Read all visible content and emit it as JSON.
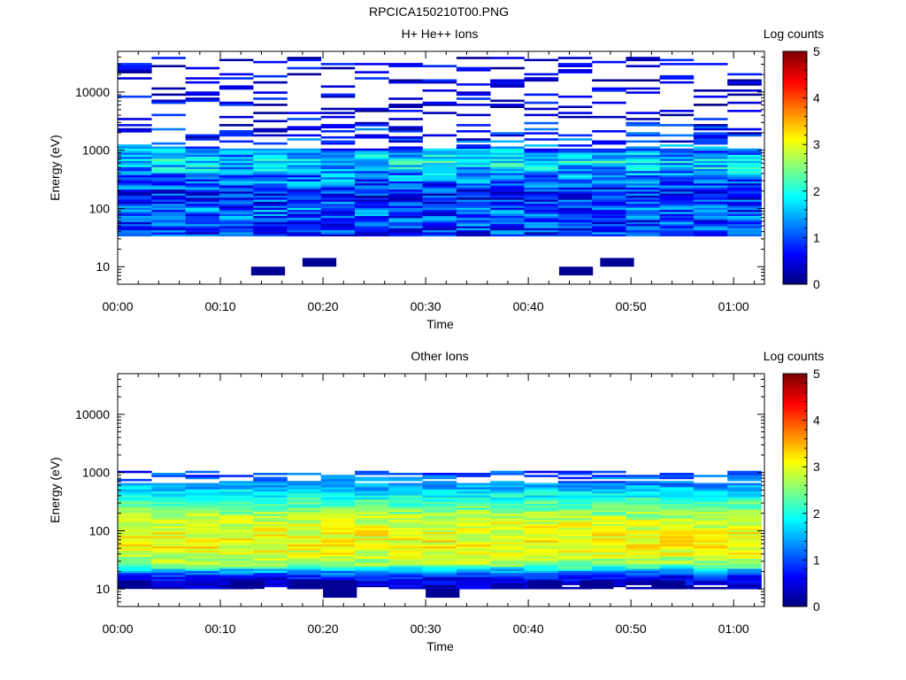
{
  "figure_title": "RPCICA150210T00.PNG",
  "chart_data": [
    {
      "type": "heatmap",
      "title": "H+ He++ Ions",
      "xlabel": "Time",
      "ylabel": "Energy (eV)",
      "y_scale": "log",
      "ylim": [
        5,
        50000
      ],
      "xlim_minutes": [
        0,
        63
      ],
      "x_tick_labels": [
        "00:00",
        "00:10",
        "00:20",
        "00:30",
        "00:40",
        "00:50",
        "01:00"
      ],
      "y_tick_labels": [
        "10",
        "100",
        "1000",
        "10000"
      ],
      "colorbar": {
        "label": "Log counts",
        "range": [
          0,
          5
        ],
        "tick_labels": [
          "0",
          "1",
          "2",
          "3",
          "4",
          "5"
        ],
        "colormap": "jet"
      },
      "profile": {
        "energy": [
          1.5,
          1.8,
          2.0,
          2.2,
          2.5,
          2.7,
          2.8,
          3.0,
          3.5,
          4.0,
          4.5
        ],
        "log_counts": [
          0.8,
          1.0,
          1.1,
          0.7,
          1.2,
          1.6,
          1.8,
          1.2,
          0.3,
          0.2,
          0.2
        ]
      },
      "cutoffs": [
        {
          "lo": 1.5,
          "hi": 4.6
        }
      ]
    },
    {
      "type": "heatmap",
      "title": "Other Ions",
      "xlabel": "Time",
      "ylabel": "Energy (eV)",
      "y_scale": "log",
      "ylim": [
        5,
        50000
      ],
      "xlim_minutes": [
        0,
        63
      ],
      "x_tick_labels": [
        "00:00",
        "00:10",
        "00:20",
        "00:30",
        "00:40",
        "00:50",
        "01:00"
      ],
      "y_tick_labels": [
        "10",
        "100",
        "1000",
        "10000"
      ],
      "colorbar": {
        "label": "Log counts",
        "range": [
          0,
          5
        ],
        "tick_labels": [
          "0",
          "1",
          "2",
          "3",
          "4",
          "5"
        ],
        "colormap": "jet"
      },
      "profile": {
        "energy": [
          1.0,
          1.2,
          1.3,
          1.4,
          1.6,
          1.8,
          2.0,
          2.2,
          2.4,
          2.6,
          2.8,
          3.0,
          3.2
        ],
        "log_counts": [
          0.3,
          0.8,
          1.5,
          2.6,
          3.0,
          3.1,
          3.0,
          2.8,
          2.4,
          1.9,
          1.3,
          0.9,
          0.6
        ]
      },
      "cutoffs": [
        {
          "lo": 1.0,
          "hi": 3.0
        }
      ]
    }
  ]
}
